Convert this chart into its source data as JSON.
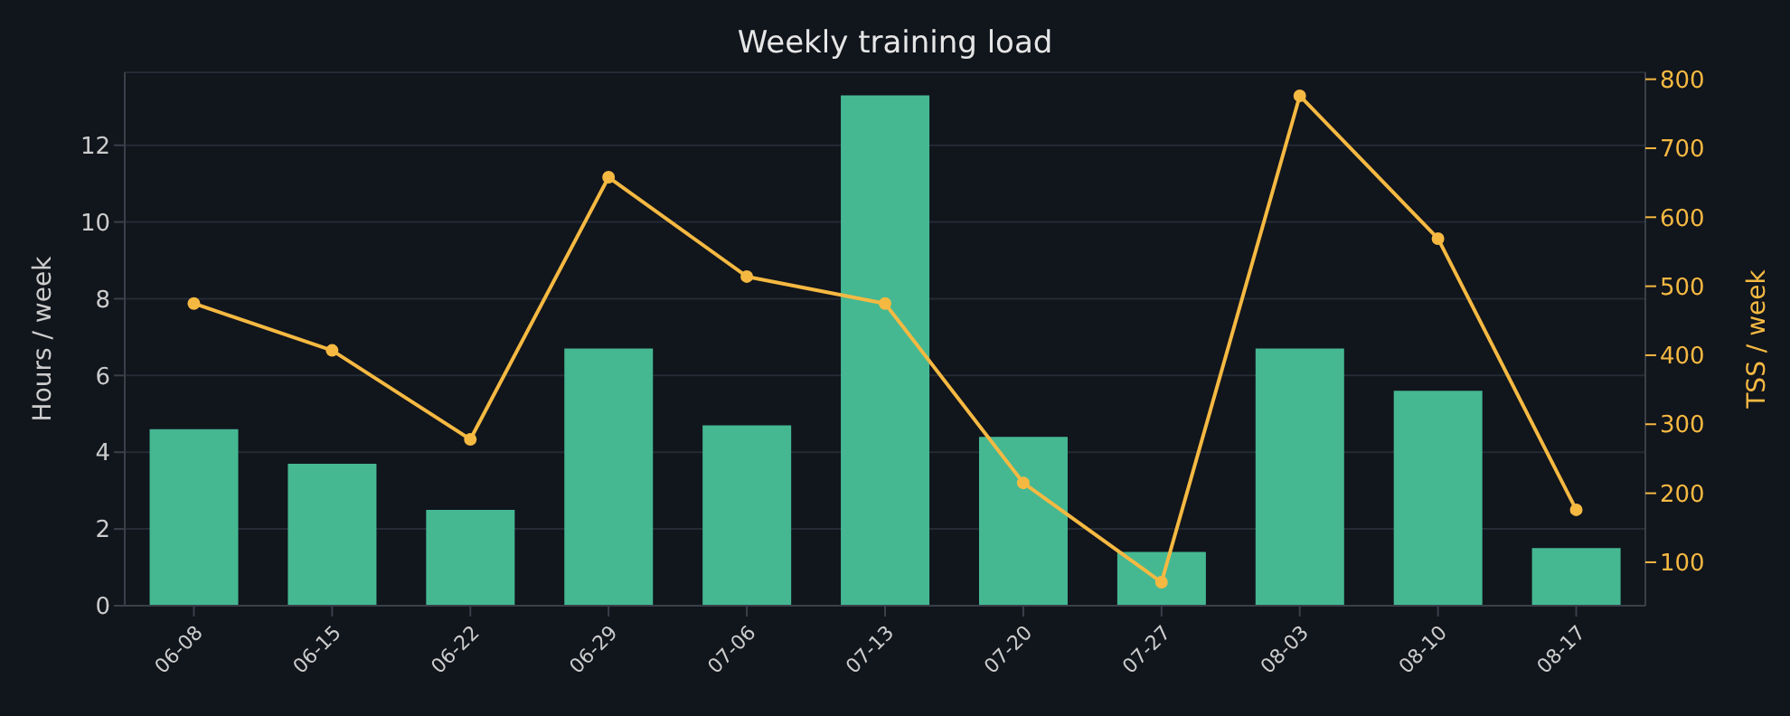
{
  "chart_data": {
    "type": "bar",
    "title": "Weekly training load",
    "ylabel": "Hours / week",
    "y2label": "TSS / week",
    "categories": [
      "06-08",
      "06-15",
      "06-22",
      "06-29",
      "07-06",
      "07-13",
      "07-20",
      "07-27",
      "08-03",
      "08-10",
      "08-17"
    ],
    "series": [
      {
        "color": "#45b892",
        "values": [
          4.6,
          3.7,
          2.5,
          6.7,
          4.7,
          13.3,
          4.4,
          1.4,
          6.7,
          5.6,
          1.5
        ]
      },
      {
        "type": "line",
        "axis": "y2",
        "color": "#f5b942",
        "values": [
          475,
          407,
          278,
          658,
          514,
          475,
          215,
          71,
          776,
          569,
          176
        ]
      }
    ],
    "ylim": [
      0,
      13.9
    ],
    "yticks": [
      0,
      2,
      4,
      6,
      8,
      10,
      12
    ],
    "y2lim": [
      37,
      810
    ],
    "y2ticks": [
      100,
      200,
      300,
      400,
      500,
      600,
      700,
      800
    ],
    "grid": "y",
    "marker": "circle",
    "line_style": "solid",
    "legend": false
  }
}
